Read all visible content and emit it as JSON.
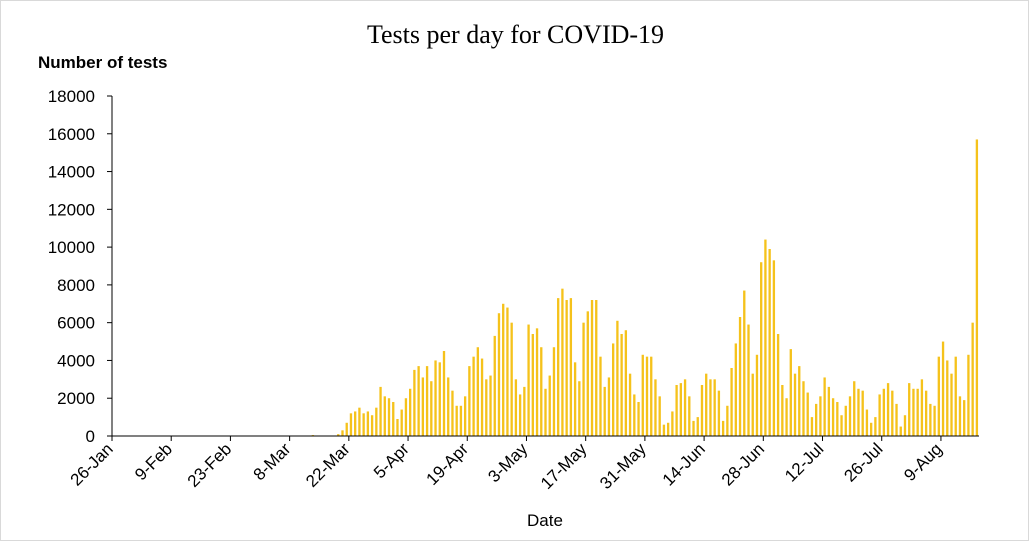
{
  "chart_data": {
    "type": "bar",
    "title": "Tests per day for COVID-19",
    "ylabel": "Number of tests",
    "xlabel": "Date",
    "ylim": [
      0,
      18000
    ],
    "yticks": [
      0,
      2000,
      4000,
      6000,
      8000,
      10000,
      12000,
      14000,
      16000,
      18000
    ],
    "x_tick_labels": [
      "26-Jan",
      "9-Feb",
      "23-Feb",
      "8-Mar",
      "22-Mar",
      "5-Apr",
      "19-Apr",
      "3-May",
      "17-May",
      "31-May",
      "14-Jun",
      "28-Jun",
      "12-Jul",
      "26-Jul",
      "9-Aug"
    ],
    "x_start": "26-Jan",
    "x_end": "12-Aug",
    "grid": false,
    "bar_color": "#f5c21b",
    "series": [
      {
        "values": [
          0,
          0,
          0,
          0,
          0,
          0,
          0,
          0,
          0,
          0,
          0,
          0,
          0,
          0,
          0,
          0,
          0,
          0,
          0,
          0,
          0,
          0,
          0,
          0,
          0,
          0,
          0,
          0,
          0,
          0,
          0,
          0,
          0,
          0,
          0,
          0,
          0,
          0,
          0,
          0,
          0,
          0,
          0,
          0,
          0,
          0,
          0,
          50,
          0,
          0,
          0,
          0,
          0,
          100,
          300,
          700,
          1200,
          1300,
          1500,
          1200,
          1300,
          1100,
          1500,
          2600,
          2100,
          2000,
          1800,
          900,
          1400,
          2000,
          2500,
          3500,
          3700,
          3100,
          3700,
          2900,
          4000,
          3900,
          4500,
          3100,
          2400,
          1600,
          1600,
          2100,
          3700,
          4200,
          4700,
          4100,
          3000,
          3200,
          5300,
          6500,
          7000,
          6800,
          6000,
          3000,
          2200,
          2600,
          5900,
          5400,
          5700,
          4700,
          2500,
          3200,
          4700,
          7300,
          7800,
          7200,
          7300,
          3900,
          2900,
          6000,
          6600,
          7200,
          7200,
          4200,
          2600,
          3100,
          4900,
          6100,
          5400,
          5600,
          3300,
          2200,
          1800,
          4300,
          4200,
          4200,
          3000,
          2100,
          600,
          700,
          1300,
          2700,
          2800,
          3000,
          2100,
          800,
          1000,
          2700,
          3300,
          3000,
          3000,
          2400,
          800,
          1600,
          3600,
          4900,
          6300,
          7700,
          5900,
          3300,
          4300,
          9200,
          10400,
          9900,
          9300,
          5400,
          2700,
          2000,
          4600,
          3300,
          3700,
          2900,
          2300,
          1000,
          1700,
          2100,
          3100,
          2600,
          2000,
          1800,
          1100,
          1600,
          2100,
          2900,
          2500,
          2400,
          1400,
          700,
          1000,
          2200,
          2500,
          2800,
          2400,
          1700,
          500,
          1100,
          2800,
          2500,
          2500,
          3000,
          2400,
          1700,
          1600,
          4200,
          5000,
          4000,
          3300,
          4200,
          2100,
          1900,
          4300,
          6000,
          15700
        ]
      }
    ]
  }
}
